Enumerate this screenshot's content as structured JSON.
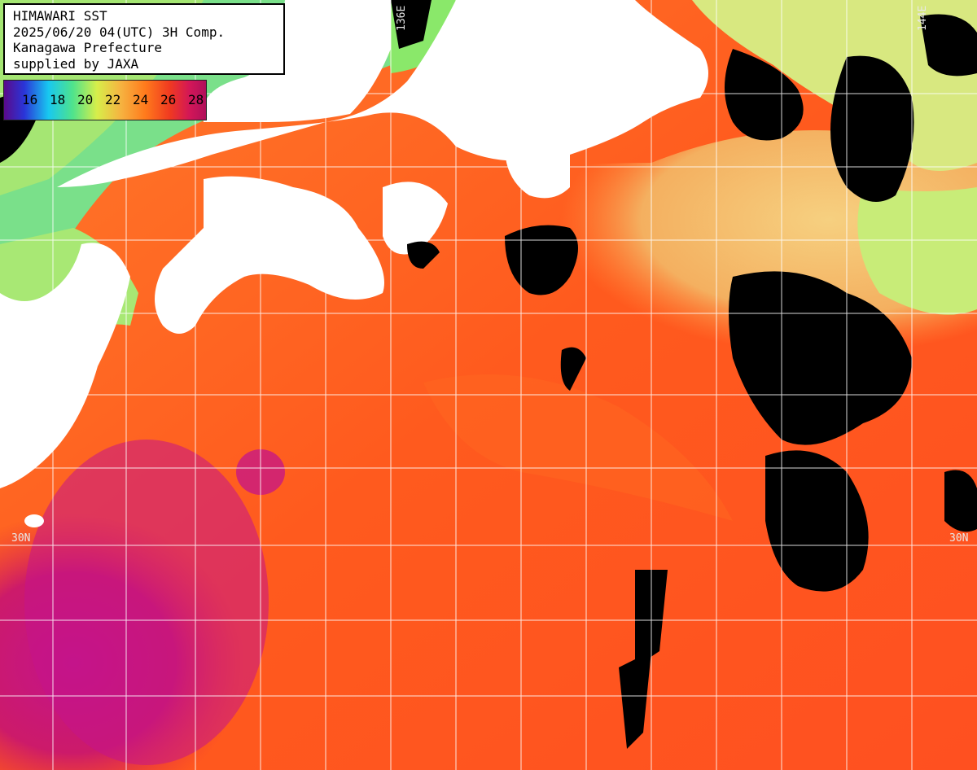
{
  "title": {
    "lines": [
      "HIMAWARI SST",
      "2025/06/20 04(UTC) 3H Comp.",
      "Kanagawa Prefecture",
      "supplied by JAXA"
    ]
  },
  "legend": {
    "labels": [
      "16",
      "18",
      "20",
      "22",
      "24",
      "26",
      "28"
    ],
    "colors": [
      "#5a0a8a",
      "#2a35d8",
      "#18c8f0",
      "#4fe38c",
      "#d7ee4a",
      "#f6b240",
      "#ff7a1c",
      "#f03a20",
      "#d21658",
      "#b0105a"
    ]
  },
  "graticule": {
    "lat_left": "30N",
    "lat_right": "30N",
    "lon_left": "136E",
    "lon_right": "144E"
  },
  "colors": {
    "land": "#ffffff",
    "cloud": "#000000",
    "grid": "#ffffff",
    "warm_sea": "#ff5a1e",
    "hot_sea": "#c81478",
    "cool_sea": "#f4c070",
    "cold_sea": "#7ae08a"
  }
}
